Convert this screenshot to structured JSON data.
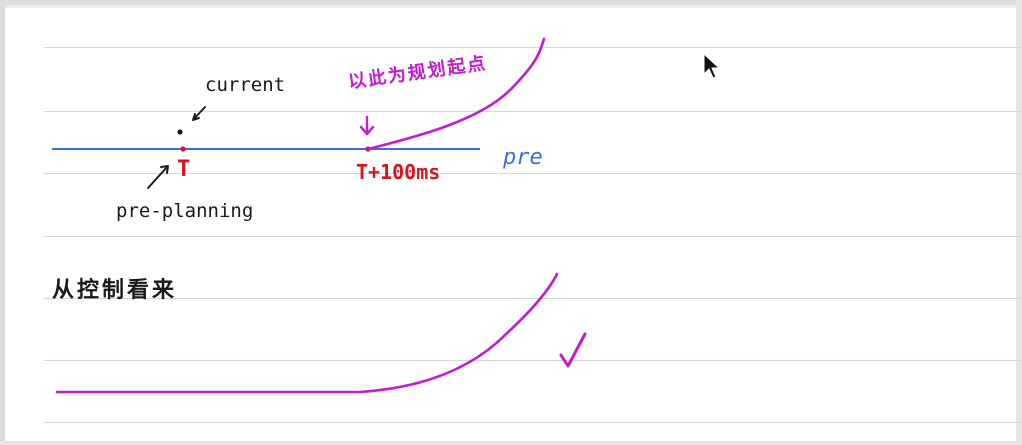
{
  "notes": {
    "current_label": "current",
    "preplanning_label": "pre-planning",
    "t_label": "T",
    "t100_label": "T+100ms",
    "pre_label": "pre",
    "plan_start_note": "以此为规划起点",
    "control_view_note": "从控制看来"
  },
  "colors": {
    "ink": "#1a1a1a",
    "red": "#d8151d",
    "blue": "#3a6fd8",
    "magenta": "#c21bd0",
    "rule": "#d5d8de"
  }
}
